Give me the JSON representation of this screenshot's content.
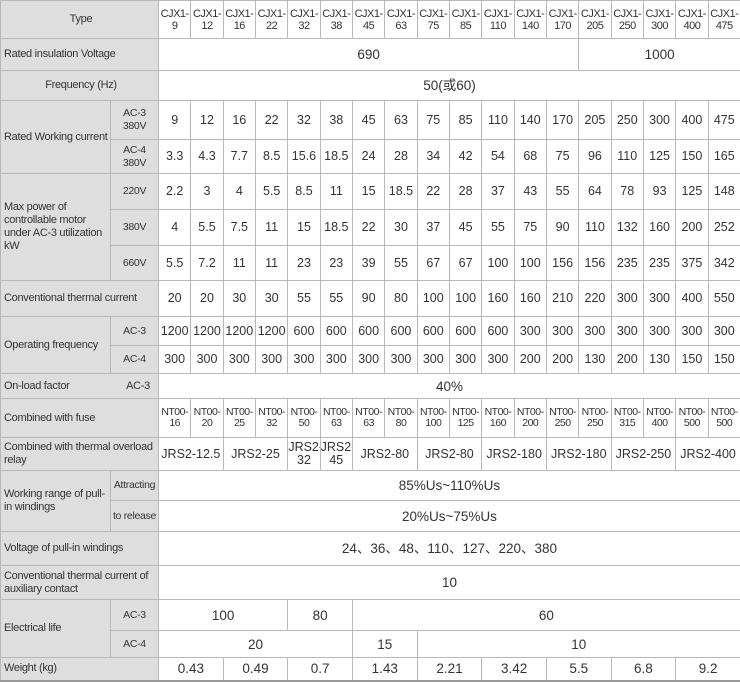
{
  "header": {
    "label": "Type",
    "models": [
      "CJX1-\n9",
      "CJX1-\n12",
      "CJX1-\n16",
      "CJX1-\n22",
      "CJX1-\n32",
      "CJX1-\n38",
      "CJX1-\n45",
      "CJX1-\n63",
      "CJX1-\n75",
      "CJX1-\n85",
      "CJX1-\n110",
      "CJX1-\n140",
      "CJX1-\n170",
      "CJX1-\n205",
      "CJX1-\n250",
      "CJX1-\n300",
      "CJX1-\n400",
      "CJX1-\n475"
    ]
  },
  "rows": [
    {
      "label": "Rated insulation Voltage",
      "cells": [
        {
          "t": "690",
          "span": 13
        },
        {
          "t": "1000",
          "span": 5
        }
      ],
      "big": true
    },
    {
      "label": "Frequency  (Hz)",
      "cells": [
        {
          "t": "50(或60)",
          "span": 18
        }
      ],
      "big": true,
      "center": true
    },
    {
      "group": "Rated Working current",
      "groupRows": 2,
      "sub": "AC-3 380V",
      "cells": [
        "9",
        "12",
        "16",
        "22",
        "32",
        "38",
        "45",
        "63",
        "75",
        "85",
        "110",
        "140",
        "170",
        "205",
        "250",
        "300",
        "400",
        "475"
      ]
    },
    {
      "sub": "AC-4 380V",
      "cells": [
        "3.3",
        "4.3",
        "7.7",
        "8.5",
        "15.6",
        "18.5",
        "24",
        "28",
        "34",
        "42",
        "54",
        "68",
        "75",
        "96",
        "110",
        "125",
        "150",
        "165"
      ]
    },
    {
      "group": "Max power of controllable motor under AC-3 utilization kW",
      "groupRows": 3,
      "sub": "220V",
      "cells": [
        "2.2",
        "3",
        "4",
        "5.5",
        "8.5",
        "11",
        "15",
        "18.5",
        "22",
        "28",
        "37",
        "43",
        "55",
        "64",
        "78",
        "93",
        "125",
        "148"
      ]
    },
    {
      "sub": "380V",
      "cells": [
        "4",
        "5.5",
        "7.5",
        "11",
        "15",
        "18.5",
        "22",
        "30",
        "37",
        "45",
        "55",
        "75",
        "90",
        "110",
        "132",
        "160",
        "200",
        "252"
      ]
    },
    {
      "sub": "660V",
      "cells": [
        "5.5",
        "7.2",
        "11",
        "11",
        "23",
        "23",
        "39",
        "55",
        "67",
        "67",
        "100",
        "100",
        "156",
        "156",
        "235",
        "235",
        "375",
        "342"
      ]
    },
    {
      "label": "Conventional thermal current",
      "cells": [
        "20",
        "20",
        "30",
        "30",
        "55",
        "55",
        "90",
        "80",
        "100",
        "100",
        "160",
        "160",
        "210",
        "220",
        "300",
        "300",
        "400",
        "550"
      ]
    },
    {
      "group": "Operating frequency",
      "groupRows": 2,
      "sub": "AC-3",
      "cells": [
        "1200",
        "1200",
        "1200",
        "1200",
        "600",
        "600",
        "600",
        "600",
        "600",
        "600",
        "600",
        "300",
        "300",
        "300",
        "300",
        "300",
        "300",
        "300"
      ]
    },
    {
      "sub": "AC-4",
      "cells": [
        "300",
        "300",
        "300",
        "300",
        "300",
        "300",
        "300",
        "300",
        "300",
        "300",
        "300",
        "200",
        "200",
        "130",
        "200",
        "130",
        "150",
        "150"
      ]
    },
    {
      "label": "On-load factor",
      "label2": "AC-3",
      "cells": [
        {
          "t": "40%",
          "span": 18
        }
      ],
      "big": true
    },
    {
      "label": "Combined with fuse",
      "small": true,
      "cells": [
        "NT00-\n16",
        "NT00-\n20",
        "NT00-\n25",
        "NT00-\n32",
        "NT00-\n50",
        "NT00-\n63",
        "NT00-\n63",
        "NT00-\n80",
        "NT00-\n100",
        "NT00-\n125",
        "NT00-\n160",
        "NT00-\n200",
        "NT00-\n250",
        "NT00-\n250",
        "NT00-\n315",
        "NT00-\n400",
        "NT00-\n500",
        "NT00-\n500"
      ]
    },
    {
      "label": "Combined with thermal overload relay",
      "cells": [
        {
          "t": "JRS2-12.5",
          "span": 2
        },
        {
          "t": "JRS2-25",
          "span": 2
        },
        {
          "t": "JRS2-32",
          "span": 1
        },
        {
          "t": "JRS2-45",
          "span": 1
        },
        {
          "t": "JRS2-80",
          "span": 2
        },
        {
          "t": "JRS2-80",
          "span": 2
        },
        {
          "t": "JRS2-180",
          "span": 2
        },
        {
          "t": "JRS2-180",
          "span": 2
        },
        {
          "t": "JRS2-250",
          "span": 2
        },
        {
          "t": "JRS2-400",
          "span": 2
        }
      ]
    },
    {
      "group": "Working range of pull-in windings",
      "groupRows": 2,
      "sub": "Attracting",
      "cells": [
        {
          "t": "85%Us~110%Us",
          "span": 18
        }
      ],
      "big": true
    },
    {
      "sub": "to release",
      "cells": [
        {
          "t": "20%Us~75%Us",
          "span": 18
        }
      ],
      "big": true
    },
    {
      "label": "Voltage of pull-in windings",
      "cells": [
        {
          "t": "24、36、48、110、127、220、380",
          "span": 18
        }
      ],
      "big": true
    },
    {
      "label": "Conventional thermal current of auxiliary contact",
      "tiny": true,
      "cells": [
        {
          "t": "10",
          "span": 18
        }
      ],
      "big": true
    },
    {
      "group": "Electrical life",
      "groupRows": 2,
      "sub": "AC-3",
      "cells": [
        {
          "t": "100",
          "span": 4
        },
        {
          "t": "80",
          "span": 2
        },
        {
          "t": "60",
          "span": 12
        }
      ],
      "big": true
    },
    {
      "sub": "AC-4",
      "cells": [
        {
          "t": "20",
          "span": 6
        },
        {
          "t": "15",
          "span": 2
        },
        {
          "t": "10",
          "span": 10
        }
      ],
      "big": true
    },
    {
      "label": "Weight       (kg)",
      "cells": [
        {
          "t": "0.43",
          "span": 2
        },
        {
          "t": "0.49",
          "span": 2
        },
        {
          "t": "0.7",
          "span": 2
        },
        {
          "t": "1.43",
          "span": 2
        },
        {
          "t": "2.21",
          "span": 2
        },
        {
          "t": "3.42",
          "span": 2
        },
        {
          "t": "5.5",
          "span": 2
        },
        {
          "t": "6.8",
          "span": 2
        },
        {
          "t": "9.2",
          "span": 2
        }
      ],
      "big": true
    }
  ]
}
